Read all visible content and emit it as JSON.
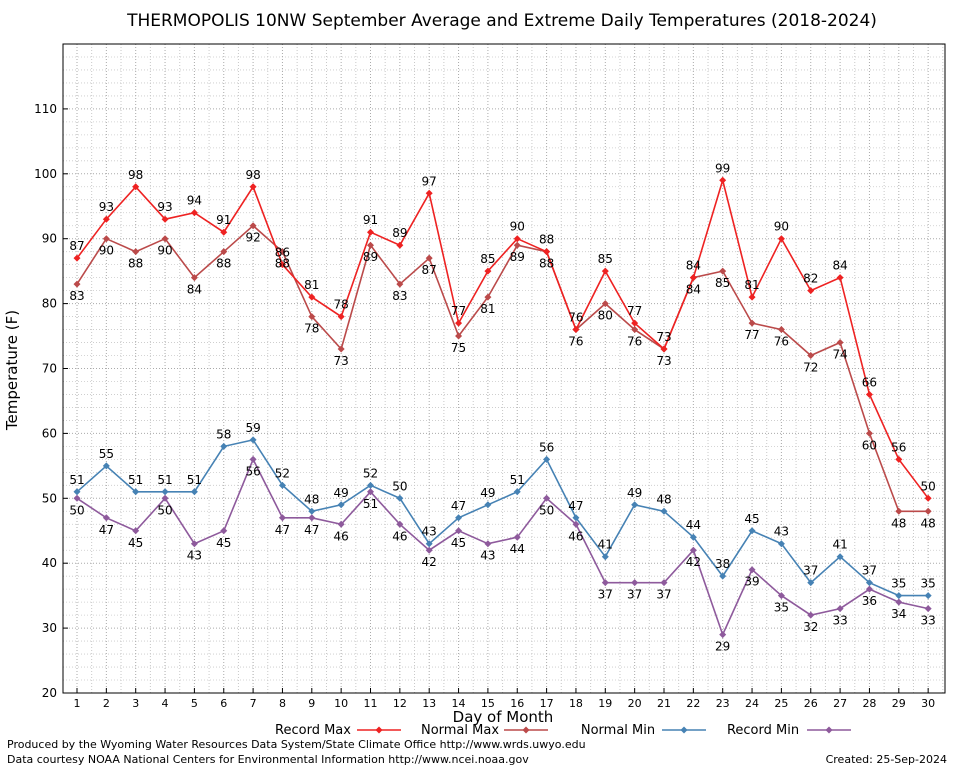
{
  "chart_data": {
    "type": "line",
    "title": "THERMOPOLIS 10NW September Average and Extreme Daily Temperatures (2018-2024)",
    "xlabel": "Day of Month",
    "ylabel": "Temperature (F)",
    "x": [
      1,
      2,
      3,
      4,
      5,
      6,
      7,
      8,
      9,
      10,
      11,
      12,
      13,
      14,
      15,
      16,
      17,
      18,
      19,
      20,
      21,
      22,
      23,
      24,
      25,
      26,
      27,
      28,
      29,
      30
    ],
    "ylim": [
      20,
      120
    ],
    "yticks": [
      20,
      30,
      40,
      50,
      60,
      70,
      80,
      90,
      100,
      110
    ],
    "grid": true,
    "legend_position": "bottom",
    "series": [
      {
        "name": "Record Max",
        "color": "#ee2222",
        "values": [
          87,
          93,
          98,
          93,
          94,
          91,
          98,
          86,
          81,
          78,
          91,
          89,
          97,
          77,
          85,
          90,
          88,
          76,
          85,
          77,
          73,
          84,
          99,
          81,
          90,
          82,
          84,
          66,
          56,
          50
        ]
      },
      {
        "name": "Normal Max",
        "color": "#bb4a4a",
        "values": [
          83,
          90,
          88,
          90,
          84,
          88,
          92,
          88,
          78,
          73,
          89,
          83,
          87,
          75,
          81,
          89,
          88,
          76,
          80,
          76,
          73,
          84,
          85,
          77,
          76,
          72,
          74,
          60,
          48,
          48
        ]
      },
      {
        "name": "Normal Min",
        "color": "#4682b4",
        "values": [
          51,
          55,
          51,
          51,
          51,
          58,
          59,
          52,
          48,
          49,
          52,
          50,
          43,
          47,
          49,
          51,
          56,
          47,
          41,
          49,
          48,
          44,
          38,
          45,
          43,
          37,
          41,
          37,
          35,
          35
        ]
      },
      {
        "name": "Record Min",
        "color": "#8e5a9c",
        "values": [
          50,
          47,
          45,
          50,
          43,
          45,
          56,
          47,
          47,
          46,
          51,
          46,
          42,
          45,
          43,
          44,
          50,
          46,
          37,
          37,
          37,
          42,
          29,
          39,
          35,
          32,
          33,
          36,
          34,
          33
        ]
      }
    ]
  },
  "footer": {
    "produced_by": "Produced by the Wyoming Water Resources Data System/State Climate Office http://www.wrds.uwyo.edu",
    "courtesy": "Data courtesy NOAA National Centers for Environmental Information http://www.ncei.noaa.gov",
    "created": "Created:  25-Sep-2024"
  }
}
